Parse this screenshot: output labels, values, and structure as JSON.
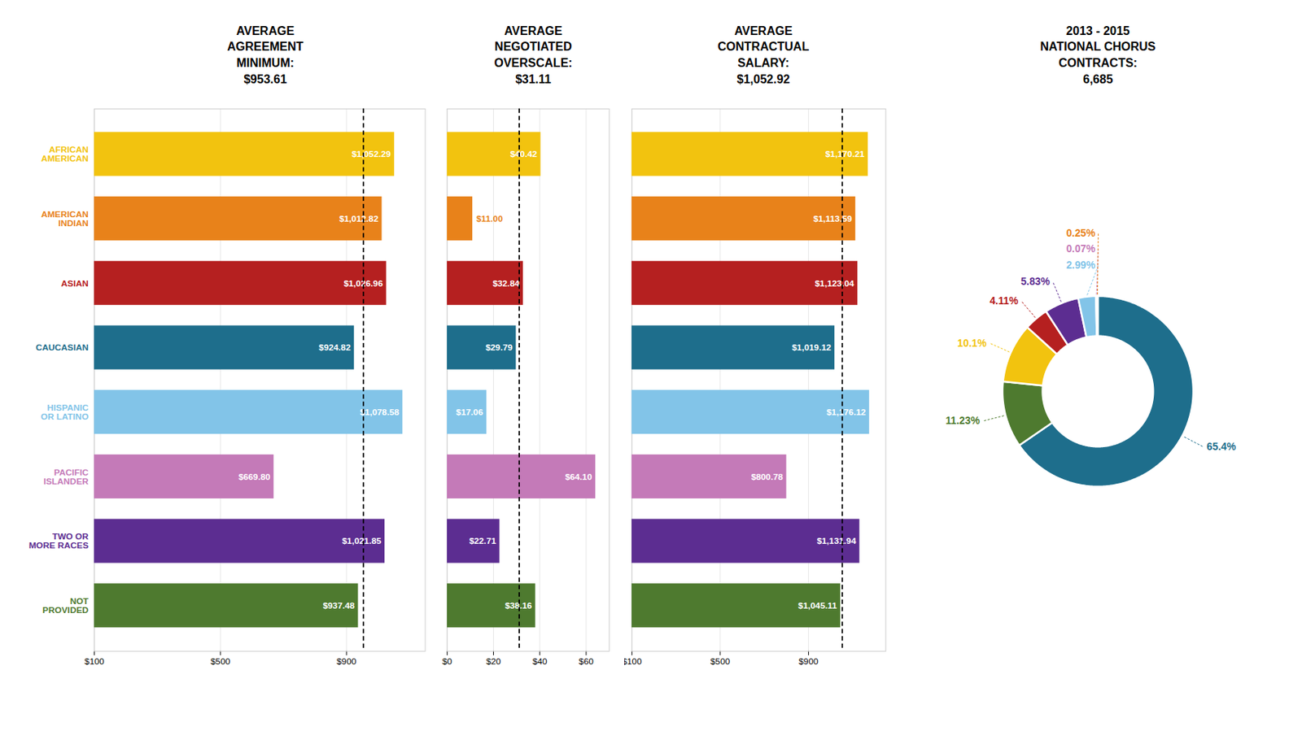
{
  "chart_data": [
    {
      "type": "bar",
      "orientation": "horizontal",
      "title": "AVERAGE\nAGREEMENT\nMINIMUM:\n$953.61",
      "categories": [
        "AFRICAN\nAMERICAN",
        "AMERICAN\nINDIAN",
        "ASIAN",
        "CAUCASIAN",
        "HISPANIC\nOR LATINO",
        "PACIFIC\nISLANDER",
        "TWO OR\nMORE RACES",
        "NOT\nPROVIDED"
      ],
      "values": [
        1052.29,
        1012.82,
        1026.96,
        924.82,
        1078.58,
        669.8,
        1021.85,
        937.48
      ],
      "value_labels": [
        "$1,052.29",
        "$1,012.82",
        "$1,026.96",
        "$924.82",
        "$1,078.58",
        "$669.80",
        "$1,021.85",
        "$937.48"
      ],
      "data_labels": true,
      "colors": [
        "#F2C30F",
        "#E8821A",
        "#B52020",
        "#1E6E8C",
        "#82C4E8",
        "#C47AB8",
        "#5C2D91",
        "#4E7A2F"
      ],
      "xlim": [
        100,
        1150
      ],
      "xticks": [
        {
          "value": 100,
          "label": "$100"
        },
        {
          "value": 500,
          "label": "$500"
        },
        {
          "value": 900,
          "label": "$900"
        }
      ],
      "grid": true,
      "average": 953.61
    },
    {
      "type": "bar",
      "orientation": "horizontal",
      "title": "AVERAGE\nNEGOTIATED\nOVERSCALE:\n$31.11",
      "categories": [
        "AFRICAN\nAMERICAN",
        "AMERICAN\nINDIAN",
        "ASIAN",
        "CAUCASIAN",
        "HISPANIC\nOR LATINO",
        "PACIFIC\nISLANDER",
        "TWO OR\nMORE RACES",
        "NOT\nPROVIDED"
      ],
      "values": [
        40.42,
        11,
        32.84,
        29.79,
        17.06,
        64.1,
        22.71,
        38.16
      ],
      "value_labels": [
        "$40.42",
        "$11.00",
        "$32.84",
        "$29.79",
        "$17.06",
        "$64.10",
        "$22.71",
        "$38.16"
      ],
      "data_labels": true,
      "colors": [
        "#F2C30F",
        "#E8821A",
        "#B52020",
        "#1E6E8C",
        "#82C4E8",
        "#C47AB8",
        "#5C2D91",
        "#4E7A2F"
      ],
      "xlim": [
        0,
        70
      ],
      "xticks": [
        {
          "value": 0,
          "label": "$0"
        },
        {
          "value": 20,
          "label": "$20"
        },
        {
          "value": 40,
          "label": "$40"
        },
        {
          "value": 60,
          "label": "$60"
        }
      ],
      "grid": true,
      "tick_labels": "x",
      "average": 31.11
    },
    {
      "type": "bar",
      "orientation": "horizontal",
      "title": "AVERAGE\nCONTRACTUAL\nSALARY:\n$1,052.92",
      "categories": [
        "AFRICAN\nAMERICAN",
        "AMERICAN\nINDIAN",
        "ASIAN",
        "CAUCASIAN",
        "HISPANIC\nOR LATINO",
        "PACIFIC\nISLANDER",
        "TWO OR\nMORE RACES",
        "NOT\nPROVIDED"
      ],
      "values": [
        1170.21,
        1113.59,
        1123.04,
        1019.12,
        1176.12,
        800.78,
        1131.94,
        1045.11
      ],
      "value_labels": [
        "$1,170.21",
        "$1,113.59",
        "$1,123.04",
        "$1,019.12",
        "$1,176.12",
        "$800.78",
        "$1,131.94",
        "$1,045.11"
      ],
      "data_labels": true,
      "colors": [
        "#F2C30F",
        "#E8821A",
        "#B52020",
        "#1E6E8C",
        "#82C4E8",
        "#C47AB8",
        "#5C2D91",
        "#4E7A2F"
      ],
      "xlim": [
        100,
        1250
      ],
      "xticks": [
        {
          "value": 100,
          "label": "$100"
        },
        {
          "value": 500,
          "label": "$500"
        },
        {
          "value": 900,
          "label": "$900"
        }
      ],
      "grid": true,
      "tick_labels": "x",
      "average": 1052.92
    },
    {
      "type": "pie",
      "title": "2013 - 2015\nNATIONAL CHORUS\nCONTRACTS:\n6,685",
      "values": [
        65.4,
        11.23,
        10.1,
        4.11,
        5.83,
        2.99,
        0.07,
        0.25
      ],
      "value_labels": [
        "65.4%",
        "11.23%",
        "10.1%",
        "4.11%",
        "5.83%",
        "2.99%",
        "0.07%",
        "0.25%"
      ],
      "data_labels": true,
      "colors": [
        "#1E6E8C",
        "#4E7A2F",
        "#F2C30F",
        "#B52020",
        "#5C2D91",
        "#82C4E8",
        "#C47AB8",
        "#E8821A"
      ]
    }
  ]
}
